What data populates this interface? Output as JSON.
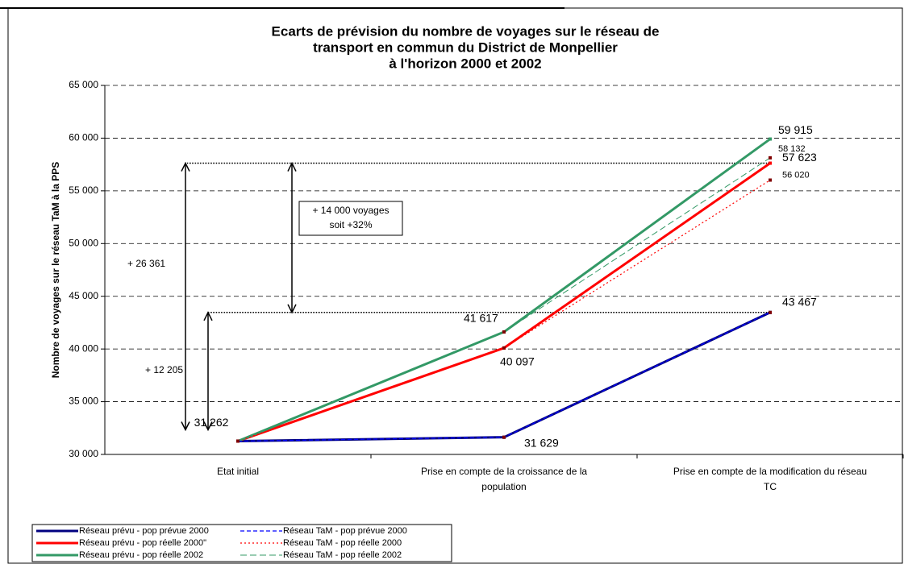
{
  "chart_data": {
    "type": "line",
    "title": [
      "Ecarts de prévision du nombre de voyages sur le réseau de",
      "transport en commun du District de Monpellier",
      "à l'horizon 2000 et 2002"
    ],
    "y_label": "Nombre de voyages sur le réseau TaM à la PPS",
    "categories": [
      "Etat initial",
      [
        "Prise en compte de la croissance de la",
        "population"
      ],
      [
        "Prise en compte de la modification du réseau",
        "TC"
      ]
    ],
    "ylim": [
      30000,
      65000
    ],
    "yticks": [
      {
        "value": 30000,
        "label": "30 000"
      },
      {
        "value": 35000,
        "label": "35 000"
      },
      {
        "value": 40000,
        "label": "40 000"
      },
      {
        "value": 45000,
        "label": "45 000"
      },
      {
        "value": 50000,
        "label": "50 000"
      },
      {
        "value": 55000,
        "label": "55 000"
      },
      {
        "value": 60000,
        "label": "60 000"
      },
      {
        "value": 65000,
        "label": "65 000"
      }
    ],
    "grid": true,
    "legend": "bottom-left",
    "series": [
      {
        "name": "Réseau prévu - pop prévue 2000",
        "color": "#000080",
        "style": "solid",
        "values": [
          31262,
          31629,
          43467
        ],
        "value_labels": [
          "31 262",
          "31 629",
          "43 467"
        ]
      },
      {
        "name": "Réseau prévu - pop  réelle 2000\"",
        "color": "#ff0000",
        "style": "solid",
        "values": [
          31262,
          40097,
          57623
        ],
        "value_labels": [
          null,
          "40 097",
          "57 623"
        ]
      },
      {
        "name": "Réseau prévu - pop réelle 2002",
        "color": "#339966",
        "style": "solid",
        "values": [
          31262,
          41617,
          59915
        ],
        "value_labels": [
          null,
          "41 617",
          "59 915"
        ]
      },
      {
        "name": "Réseau TaM - pop prévue 2000",
        "color": "#0000ff",
        "style": "dashed",
        "values": [
          31262,
          31629,
          43467
        ],
        "value_labels": [
          null,
          null,
          null
        ]
      },
      {
        "name": "Réseau TaM - pop réelle 2000",
        "color": "#ff0000",
        "style": "dotted",
        "values": [
          31262,
          40097,
          56020
        ],
        "value_labels": [
          null,
          null,
          "56 020"
        ]
      },
      {
        "name": "Réseau TaM - pop réelle 2002",
        "color": "#339966",
        "style": "longdash",
        "values": [
          31262,
          41617,
          58132
        ],
        "value_labels": [
          null,
          null,
          "58 132"
        ]
      }
    ],
    "annotations": [
      "+ 26 361",
      "+ 12 205",
      [
        "+ 14 000 voyages",
        "soit +32%"
      ]
    ]
  }
}
